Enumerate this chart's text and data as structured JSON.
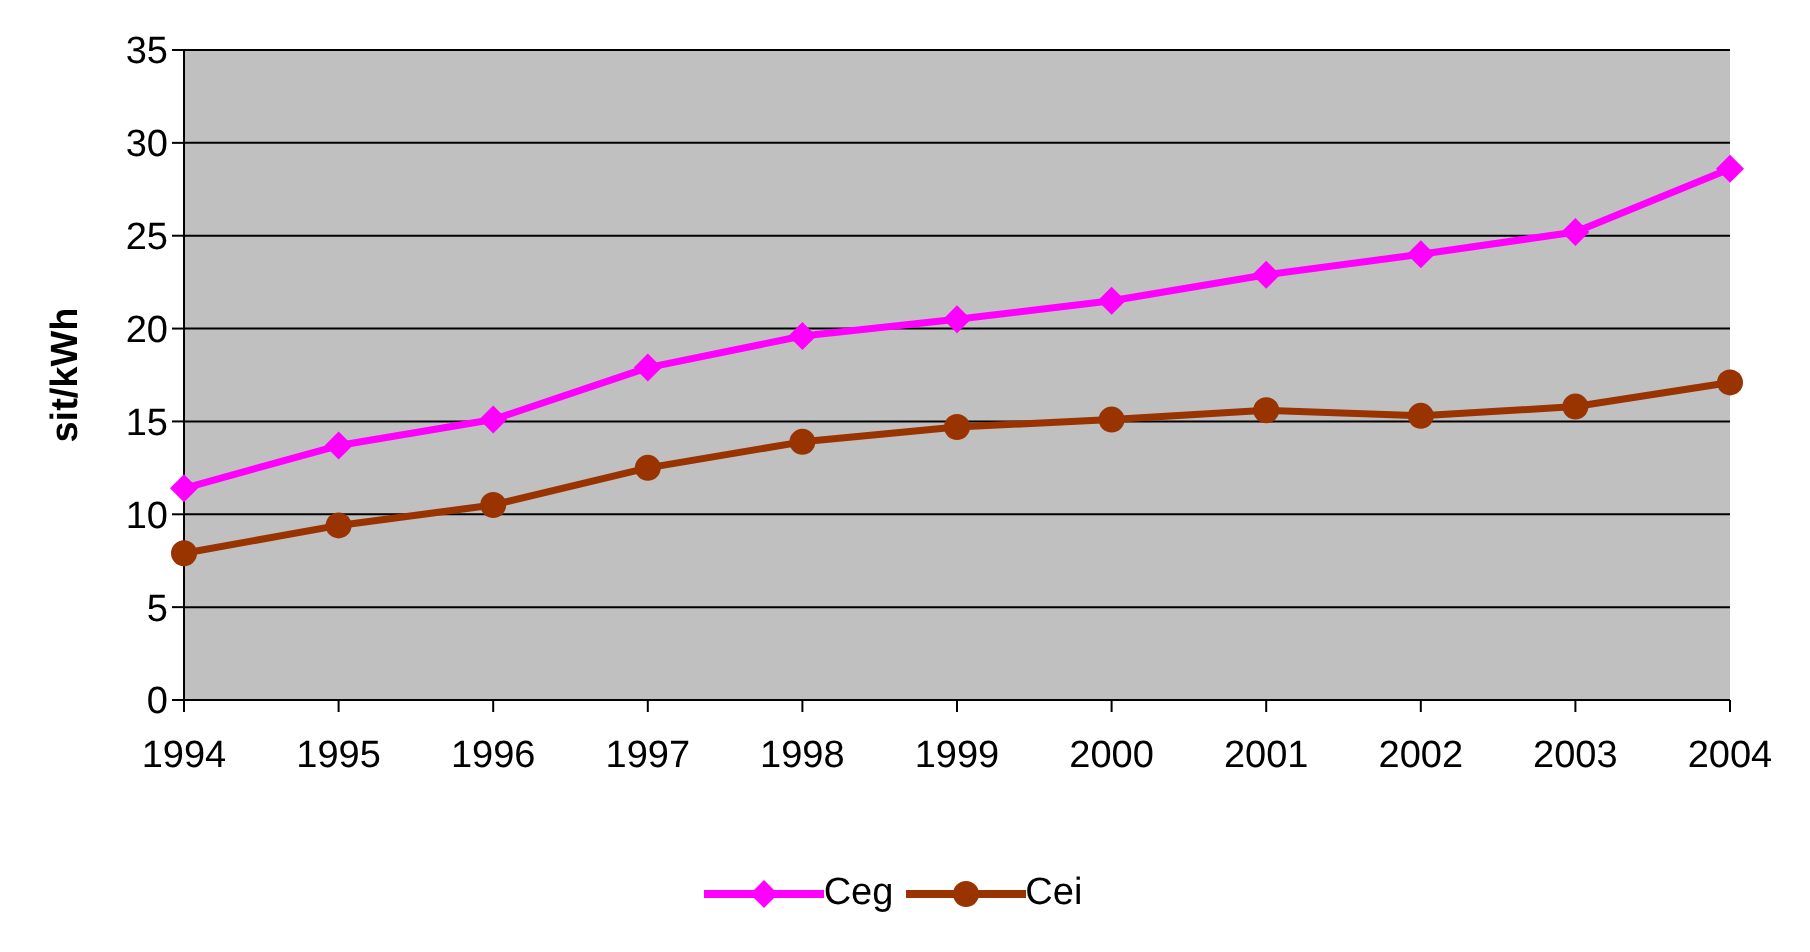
{
  "chart_data": {
    "type": "line",
    "ylabel": "sit/kWh",
    "categories": [
      "1994",
      "1995",
      "1996",
      "1997",
      "1998",
      "1999",
      "2000",
      "2001",
      "2002",
      "2003",
      "2004"
    ],
    "series": [
      {
        "name": "Ceg",
        "color": "#ff00ff",
        "marker": "diamond",
        "values": [
          11.4,
          13.7,
          15.1,
          17.9,
          19.6,
          20.5,
          21.5,
          22.9,
          24.0,
          25.2,
          28.6
        ]
      },
      {
        "name": "Cei",
        "color": "#993300",
        "marker": "circle",
        "values": [
          7.9,
          9.4,
          10.5,
          12.5,
          13.9,
          14.7,
          15.1,
          15.6,
          15.3,
          15.8,
          17.1
        ]
      }
    ],
    "ylim": [
      0,
      35
    ],
    "yticks": [
      0,
      5,
      10,
      15,
      20,
      25,
      30,
      35
    ],
    "grid": "y",
    "legend": "bottom",
    "line_style": "solid"
  }
}
